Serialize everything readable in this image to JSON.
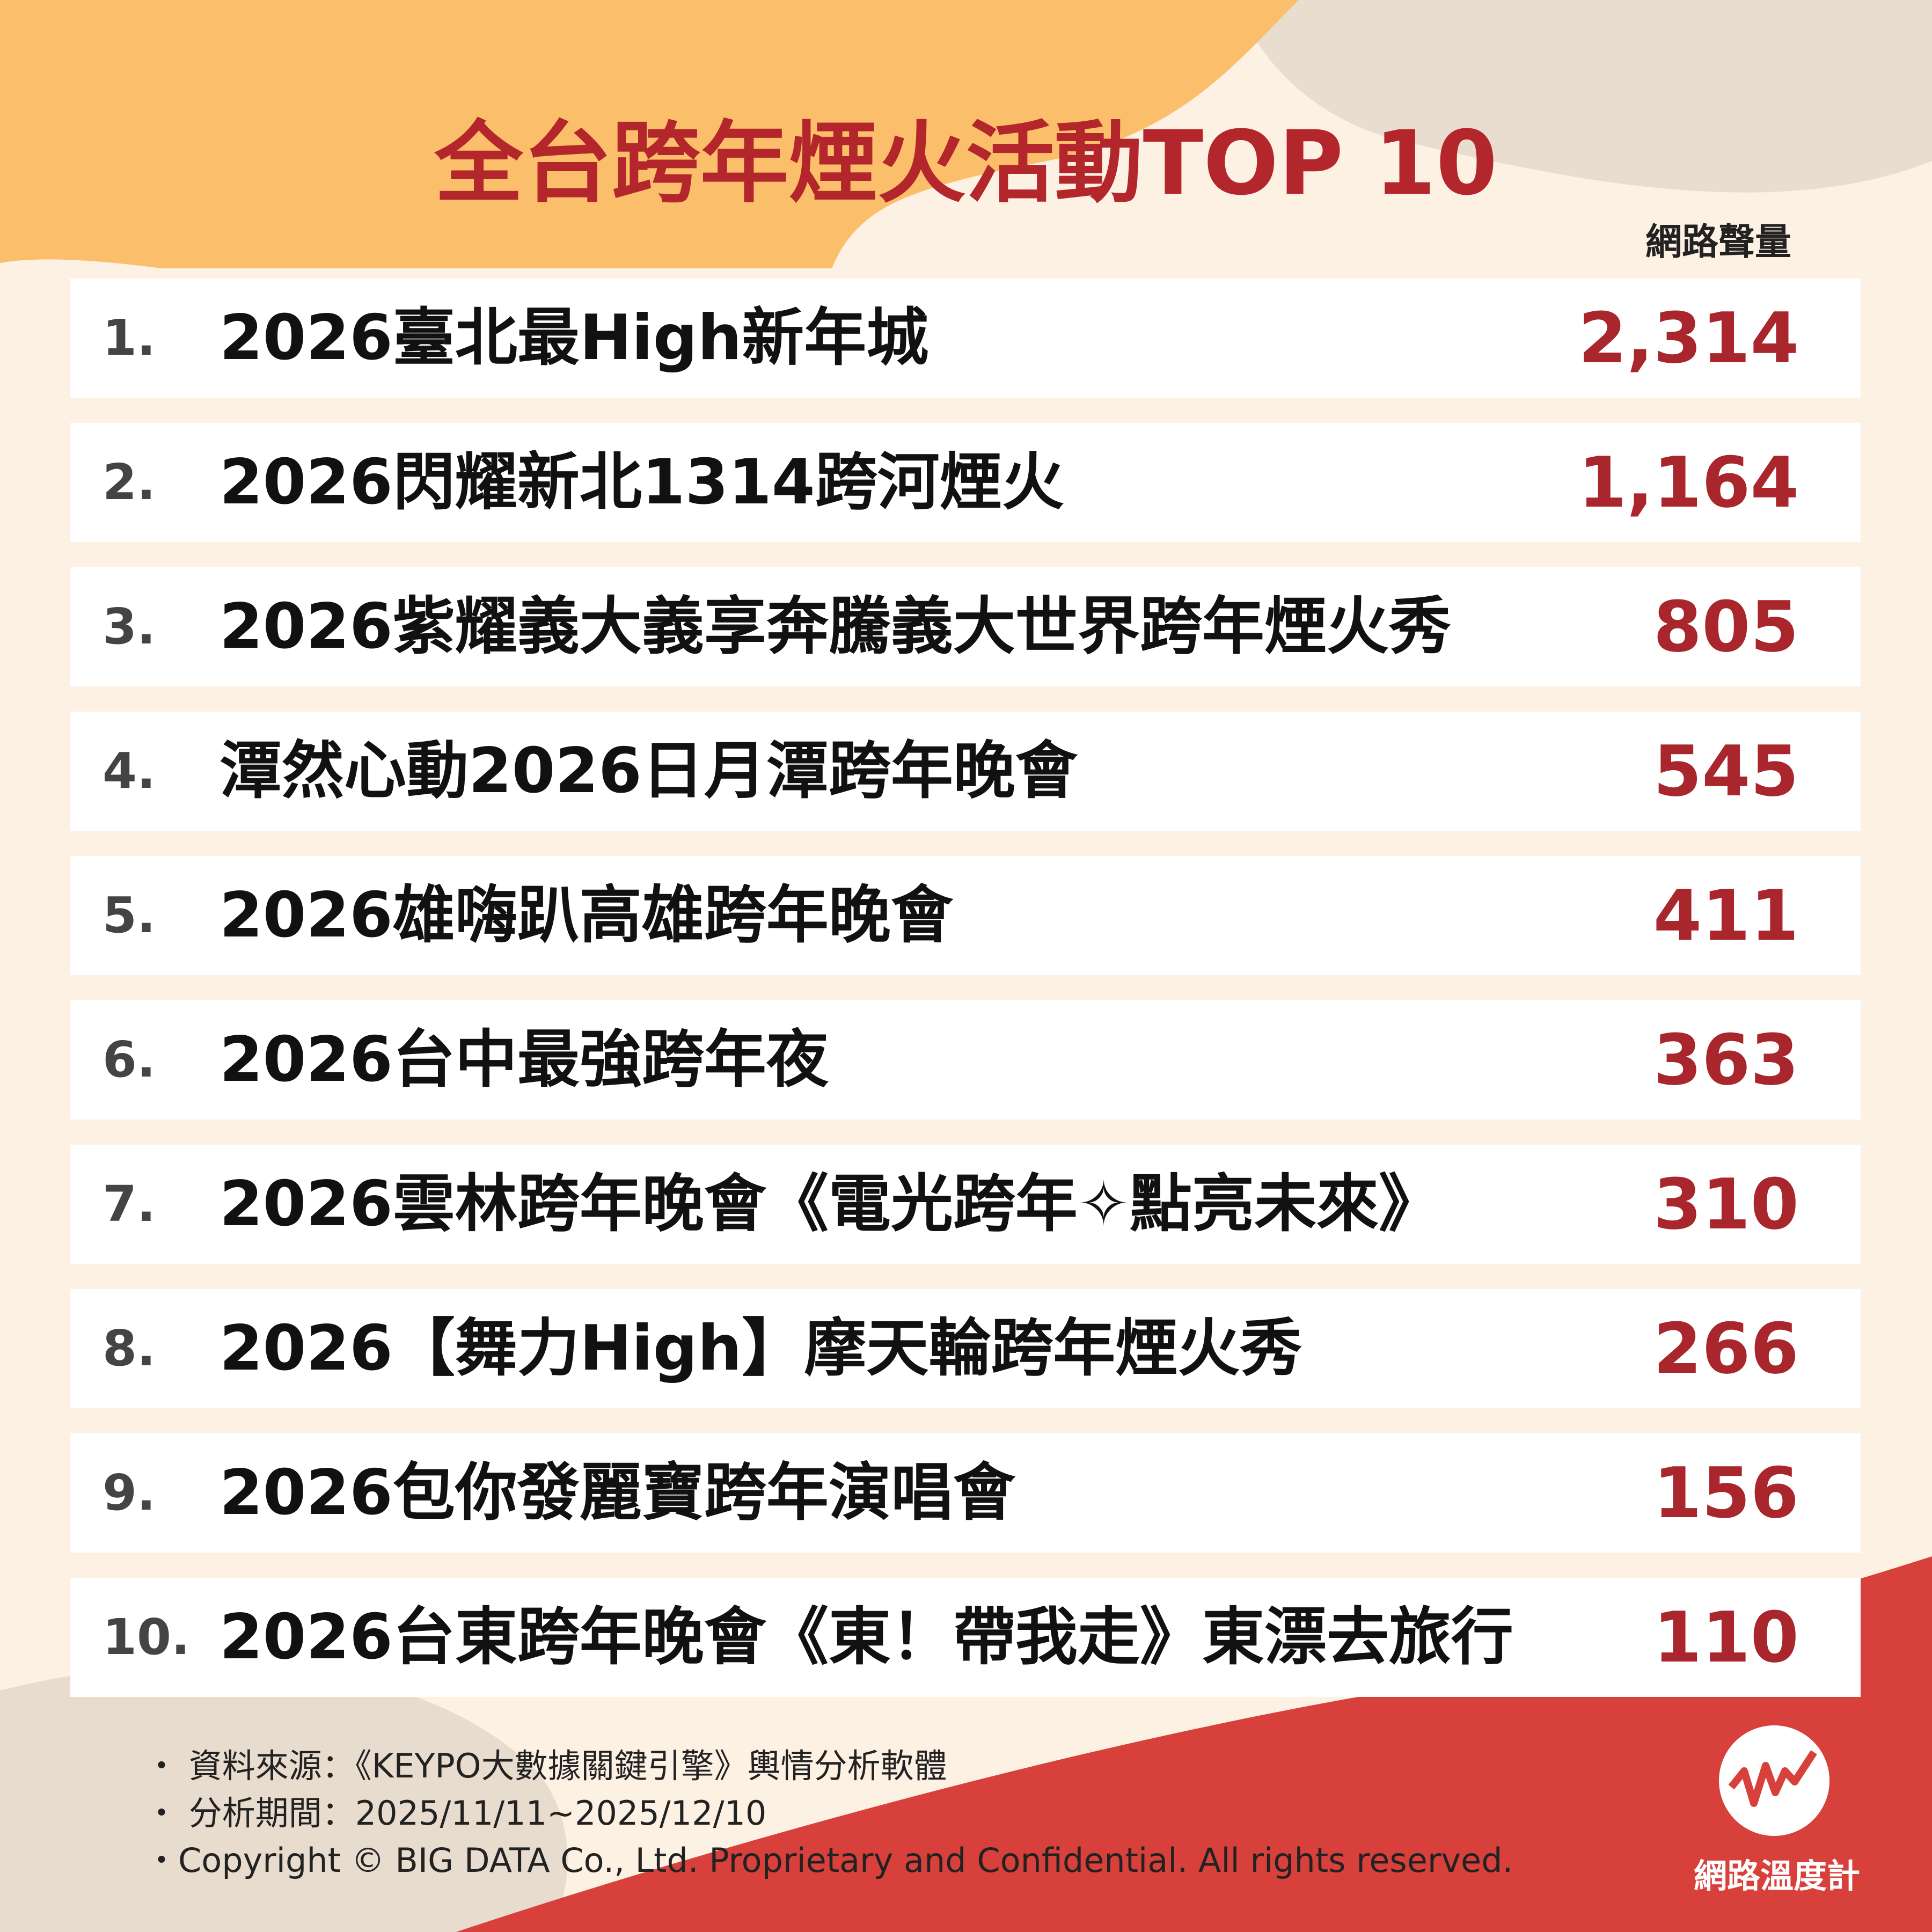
{
  "header": {
    "title": "全台跨年煙火活動TOP 10",
    "column_header": "網路聲量"
  },
  "table": {
    "rows": [
      {
        "rank": "1.",
        "name": "2026臺北最High新年城",
        "volume": "2,314"
      },
      {
        "rank": "2.",
        "name": "2026閃耀新北1314跨河煙火",
        "volume": "1,164"
      },
      {
        "rank": "3.",
        "name": "2026紫耀義大義享奔騰義大世界跨年煙火秀",
        "volume": "805"
      },
      {
        "rank": "4.",
        "name": "潭然心動2026日月潭跨年晚會",
        "volume": "545"
      },
      {
        "rank": "5.",
        "name": "2026雄嗨趴高雄跨年晚會",
        "volume": "411"
      },
      {
        "rank": "6.",
        "name": "2026台中最強跨年夜",
        "volume": "363"
      },
      {
        "rank": "7.",
        "name": "2026雲林跨年晚會《電光跨年✧點亮未來》",
        "volume": "310"
      },
      {
        "rank": "8.",
        "name": "2026【舞力High】摩天輪跨年煙火秀",
        "volume": "266"
      },
      {
        "rank": "9.",
        "name": "2026包你發麗寶跨年演唱會",
        "volume": "156"
      },
      {
        "rank": "10.",
        "name": "2026台東跨年晚會《東！帶我走》東漂去旅行",
        "volume": "110"
      }
    ]
  },
  "footer": {
    "notes": [
      "・ 資料來源：《KEYPO大數據關鍵引擎》輿情分析軟體",
      "・ 分析期間：2025/11/11~2025/12/10",
      "・Copyright © BIG DATA Co., Ltd. Proprietary and Confidential. All rights reserved."
    ],
    "logo": "網路溫度計"
  }
}
